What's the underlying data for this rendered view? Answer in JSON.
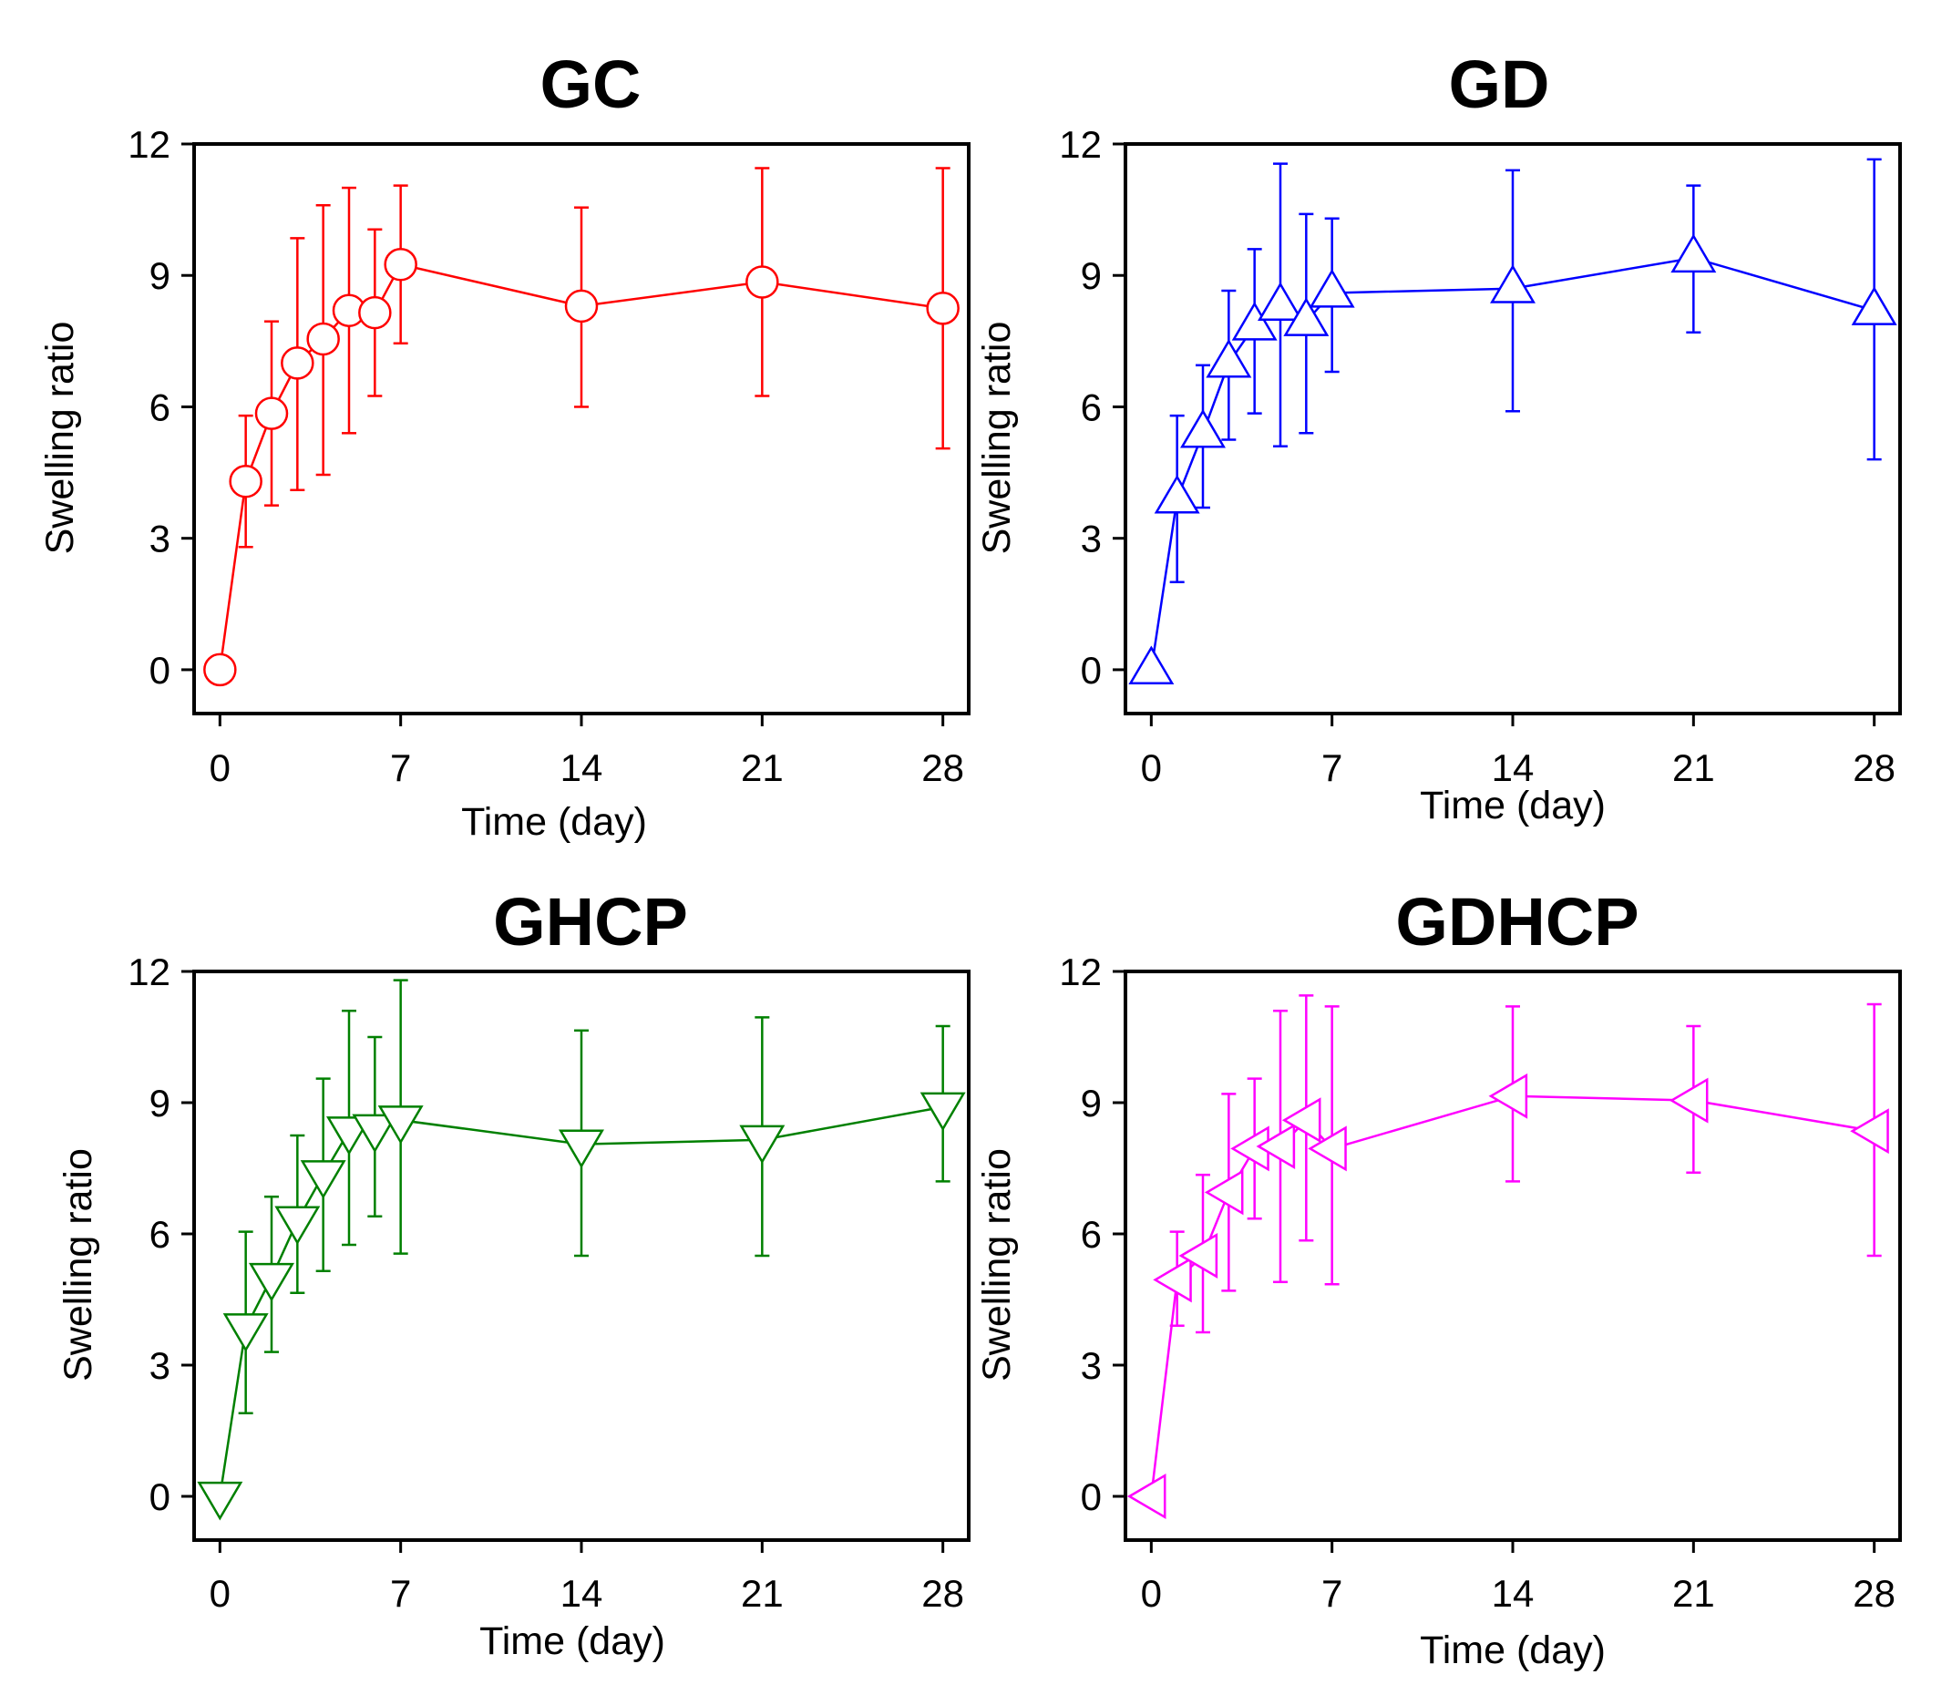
{
  "chart_data": [
    {
      "type": "line",
      "title": "GC",
      "xlabel": "Time (day)",
      "ylabel": "Swelling ratio",
      "xlim": [
        -1,
        29
      ],
      "ylim": [
        -1,
        12
      ],
      "xticks": [
        0,
        7,
        14,
        21,
        28
      ],
      "yticks": [
        0,
        3,
        6,
        9,
        12
      ],
      "marker": "circle",
      "color": "#ff0000",
      "series": [
        {
          "name": "GC",
          "x": [
            0,
            1,
            2,
            3,
            4,
            5,
            6,
            7,
            14,
            21,
            28
          ],
          "y": [
            0.0,
            4.3,
            5.85,
            7.0,
            7.55,
            8.2,
            8.15,
            9.25,
            8.3,
            8.85,
            8.25
          ],
          "err_low": [
            0.0,
            2.8,
            3.75,
            4.1,
            4.45,
            5.4,
            6.25,
            7.45,
            6.0,
            6.25,
            5.05
          ],
          "err_high": [
            0.0,
            5.8,
            7.95,
            9.85,
            10.6,
            11.0,
            10.05,
            11.05,
            10.55,
            11.45,
            11.45
          ]
        }
      ]
    },
    {
      "type": "line",
      "title": "GD",
      "xlabel": "Time (day)",
      "ylabel": "Swelling ratio",
      "xlim": [
        -1,
        29
      ],
      "ylim": [
        -1,
        12
      ],
      "xticks": [
        0,
        7,
        14,
        21,
        28
      ],
      "yticks": [
        0,
        3,
        6,
        9,
        12
      ],
      "marker": "triangle-up",
      "color": "#0000ff",
      "series": [
        {
          "name": "GD",
          "x": [
            0,
            1,
            2,
            3,
            4,
            5,
            6,
            7,
            14,
            21,
            28
          ],
          "y": [
            0.0,
            3.9,
            5.4,
            7.0,
            7.85,
            8.3,
            7.95,
            8.6,
            8.7,
            9.4,
            8.2
          ],
          "err_low": [
            0.0,
            2.0,
            3.7,
            5.25,
            5.85,
            5.1,
            5.4,
            6.8,
            5.9,
            7.7,
            4.8
          ],
          "err_high": [
            0.0,
            5.8,
            6.95,
            8.65,
            9.6,
            11.55,
            10.4,
            10.3,
            11.4,
            11.05,
            11.65
          ]
        }
      ]
    },
    {
      "type": "line",
      "title": "GHCP",
      "xlabel": "Time (day)",
      "ylabel": "Swelling ratio",
      "xlim": [
        -1,
        29
      ],
      "ylim": [
        -1,
        12
      ],
      "xticks": [
        0,
        7,
        14,
        21,
        28
      ],
      "yticks": [
        0,
        3,
        6,
        9,
        12
      ],
      "marker": "triangle-down",
      "color": "#008000",
      "series": [
        {
          "name": "GHCP",
          "x": [
            0,
            1,
            2,
            3,
            4,
            5,
            6,
            7,
            14,
            21,
            28
          ],
          "y": [
            0.0,
            3.85,
            5.0,
            6.3,
            7.35,
            8.35,
            8.4,
            8.6,
            8.05,
            8.15,
            8.9
          ],
          "err_low": [
            0.0,
            1.9,
            3.3,
            4.65,
            5.15,
            5.75,
            6.4,
            5.55,
            5.5,
            5.5,
            7.2
          ],
          "err_high": [
            0.0,
            6.05,
            6.85,
            8.25,
            9.55,
            11.1,
            10.5,
            11.8,
            10.65,
            10.95,
            10.75
          ]
        }
      ]
    },
    {
      "type": "line",
      "title": "GDHCP",
      "xlabel": "Time (day)",
      "ylabel": "Swelling ratio",
      "xlim": [
        -1,
        29
      ],
      "ylim": [
        -1,
        12
      ],
      "xticks": [
        0,
        7,
        14,
        21,
        28
      ],
      "yticks": [
        0,
        3,
        6,
        9,
        12
      ],
      "marker": "triangle-left",
      "color": "#ff00ff",
      "series": [
        {
          "name": "GDHCP",
          "x": [
            0,
            1,
            2,
            3,
            4,
            5,
            6,
            7,
            14,
            21,
            28
          ],
          "y": [
            0.0,
            4.95,
            5.5,
            6.95,
            7.95,
            8.0,
            8.6,
            7.95,
            9.15,
            9.05,
            8.35
          ],
          "err_low": [
            0.0,
            3.9,
            3.75,
            4.7,
            6.35,
            4.9,
            5.85,
            4.85,
            7.2,
            7.4,
            5.5
          ],
          "err_high": [
            0.0,
            6.05,
            7.35,
            9.2,
            9.55,
            11.1,
            11.45,
            11.2,
            11.2,
            10.75,
            11.25
          ]
        }
      ]
    }
  ]
}
